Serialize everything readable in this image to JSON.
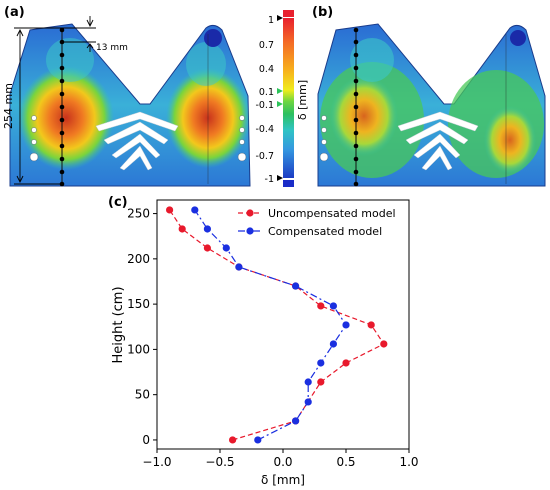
{
  "panels": {
    "a": {
      "label": "(a)",
      "dim_total": "254 mm",
      "dim_top": "13 mm"
    },
    "b": {
      "label": "(b)"
    },
    "c": {
      "label": "(c)"
    }
  },
  "colorbar": {
    "title": "δ [mm]",
    "ticks": [
      "1",
      "0.7",
      "0.4",
      "0.1",
      "-0.1",
      "-0.4",
      "-0.7",
      "-1"
    ],
    "colors": [
      "#d9203a",
      "#f0552a",
      "#f7a21e",
      "#f2e81c",
      "#9ad63a",
      "#2cc45a",
      "#33c6c0",
      "#3aa0e0",
      "#2a6fd6",
      "#1c3fc4"
    ]
  },
  "chart_data": {
    "type": "line",
    "xlabel": "δ [mm]",
    "ylabel": "Height (cm)",
    "xlim": [
      -1.0,
      1.0
    ],
    "ylim": [
      -10,
      265
    ],
    "xticks": [
      "−1.0",
      "−0.5",
      "0.0",
      "0.5",
      "1.0"
    ],
    "yticks": [
      "0",
      "50",
      "100",
      "150",
      "200",
      "250"
    ],
    "legend_position": "top-right",
    "series": [
      {
        "name": "Uncompensated model",
        "color": "#e8192c",
        "style": "dashed",
        "points": [
          [
            -0.4,
            0
          ],
          [
            0.1,
            21
          ],
          [
            0.3,
            64
          ],
          [
            0.5,
            85
          ],
          [
            0.8,
            106
          ],
          [
            0.7,
            127
          ],
          [
            0.3,
            148
          ],
          [
            0.1,
            170
          ],
          [
            -0.35,
            191
          ],
          [
            -0.6,
            212
          ],
          [
            -0.8,
            233
          ],
          [
            -0.9,
            254
          ]
        ]
      },
      {
        "name": "Compensated model",
        "color": "#1a2fe0",
        "style": "dashdot",
        "points": [
          [
            -0.2,
            0
          ],
          [
            0.1,
            21
          ],
          [
            0.2,
            42
          ],
          [
            0.2,
            64
          ],
          [
            0.3,
            85
          ],
          [
            0.4,
            106
          ],
          [
            0.5,
            127
          ],
          [
            0.4,
            148
          ],
          [
            0.1,
            170
          ],
          [
            -0.35,
            191
          ],
          [
            -0.45,
            212
          ],
          [
            -0.6,
            233
          ],
          [
            -0.7,
            254
          ]
        ]
      }
    ]
  }
}
